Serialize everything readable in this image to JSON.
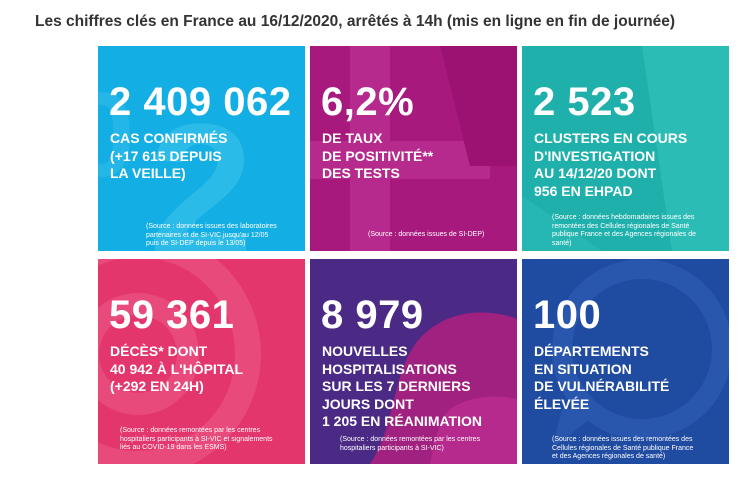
{
  "title": "Les chiffres clés en France au 16/12/2020, arrêtés à 14h (mis en ligne en fin de journée)",
  "colors": {
    "cases": "#13aee3",
    "positivity": "#a8197e",
    "clusters": "#1fb0ac",
    "deaths": "#e3366d",
    "hospital": "#4b2a86",
    "departments": "#1f4ba1"
  },
  "cards": [
    {
      "number": "2 409 062",
      "lines": [
        "CAS CONFIRMÉS",
        "(+17 615 DEPUIS",
        "LA VEILLE)"
      ],
      "source": [
        "(Source : données issues des laboratoires",
        "partenaires et de SI-VIC jusqu'au 12/05",
        "puis de SI-DEP depuis le 13/05)"
      ]
    },
    {
      "number": "6,2%",
      "lines": [
        "DE TAUX",
        "DE POSITIVITÉ**",
        "DES TESTS"
      ],
      "source": [
        "(Source : données issues de SI-DEP)"
      ]
    },
    {
      "number": "2 523",
      "lines": [
        "CLUSTERS EN COURS",
        "D'INVESTIGATION",
        "AU 14/12/20 DONT",
        "956 EN EHPAD"
      ],
      "source": [
        "(Source : données hebdomadaires issues des",
        "remontées des Cellules régionales de Santé",
        "publique France et des Agences régionales de",
        "santé)"
      ]
    },
    {
      "number": "59 361",
      "lines": [
        "DÉCÈS* DONT",
        "40 942 À L'HÔPITAL",
        "(+292 EN 24H)"
      ],
      "source": [
        "(Source : données remontées par les centres",
        "hospitaliers participants à SI-VIC et signalements",
        "liés au COVID-19 dans les ESMS)"
      ]
    },
    {
      "number": "8 979",
      "lines": [
        "NOUVELLES",
        "HOSPITALISATIONS",
        "SUR LES 7 DERNIERS",
        "JOURS DONT",
        "1 205 EN RÉANIMATION"
      ],
      "source": [
        "(Source : données remontées par les centres",
        "hospitaliers participants à SI-VIC)"
      ]
    },
    {
      "number": "100",
      "lines": [
        "DÉPARTEMENTS",
        "EN SITUATION",
        "DE VULNÉRABILITÉ",
        "ÉLEVÉE"
      ],
      "source": [
        "(Source : données issues des remontées des",
        "Cellules régionales de Santé publique France",
        "et des Agences régionales de santé)"
      ]
    }
  ]
}
